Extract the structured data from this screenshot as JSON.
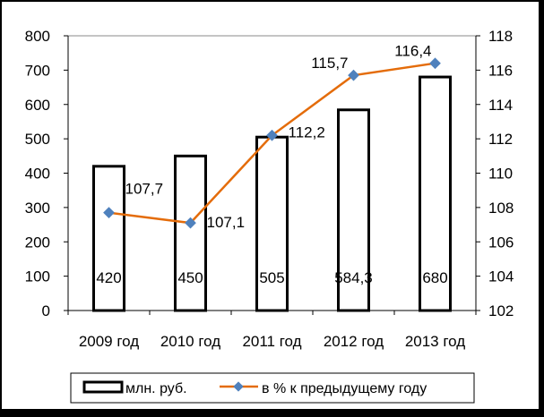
{
  "chart_data": {
    "type": "bar",
    "categories": [
      "2009 год",
      "2010 год",
      "2011 год",
      "2012 год",
      "2013 год"
    ],
    "series": [
      {
        "name": "млн. руб.",
        "type": "bar",
        "axis": "left",
        "values": [
          420,
          450,
          505,
          584.3,
          680
        ],
        "labels": [
          "420",
          "450",
          "505",
          "584,3",
          "680"
        ]
      },
      {
        "name": "в %  к предыдущему году",
        "type": "line",
        "axis": "right",
        "values": [
          107.7,
          107.1,
          112.2,
          115.7,
          116.4
        ],
        "labels": [
          "107,7",
          "107,1",
          "112,2",
          "115,7",
          "116,4"
        ],
        "color": "#E46C0A",
        "marker_color": "#4F81BD"
      }
    ],
    "y_left": {
      "lim": [
        0,
        800
      ],
      "ticks": [
        "0",
        "100",
        "200",
        "300",
        "400",
        "500",
        "600",
        "700",
        "800"
      ]
    },
    "y_right": {
      "lim": [
        102,
        118
      ],
      "ticks": [
        "102",
        "104",
        "106",
        "108",
        "110",
        "112",
        "114",
        "116",
        "118"
      ]
    },
    "grid": false,
    "legend_position": "bottom"
  }
}
